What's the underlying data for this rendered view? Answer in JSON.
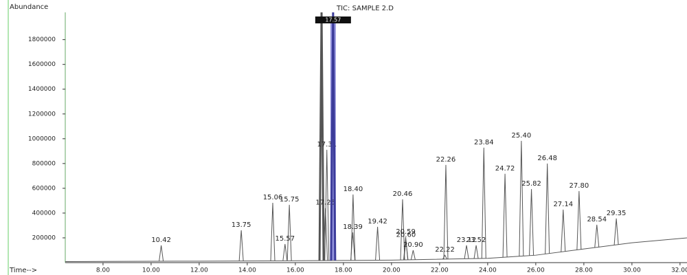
{
  "chart_data": {
    "type": "chromatogram",
    "title": "TIC: SAMPLE 2.D",
    "y_label": "Abundance",
    "x_label": "Time-->",
    "xlim": [
      6.43,
      32.29
    ],
    "ylim": [
      0,
      2020000
    ],
    "yticks": [
      200000,
      400000,
      600000,
      800000,
      1000000,
      1200000,
      1400000,
      1600000,
      1800000
    ],
    "xticks": [
      {
        "value": 8,
        "label": "8.00"
      },
      {
        "value": 10,
        "label": "10.00"
      },
      {
        "value": 12,
        "label": "12.00"
      },
      {
        "value": 14,
        "label": "14.00"
      },
      {
        "value": 16,
        "label": "16.00"
      },
      {
        "value": 18,
        "label": "18.00"
      },
      {
        "value": 20,
        "label": "20.00"
      },
      {
        "value": 22,
        "label": "22.00"
      },
      {
        "value": 24,
        "label": "24.00"
      },
      {
        "value": 26,
        "label": "26.00"
      },
      {
        "value": 28,
        "label": "28.00"
      },
      {
        "value": 30,
        "label": "30.00"
      },
      {
        "value": 32,
        "label": "32.00"
      }
    ],
    "color": "#555555",
    "highlight_color": "#7b7bd6",
    "baseline": {
      "x": [
        6.43,
        8,
        12,
        16,
        20,
        24,
        26,
        28,
        30,
        32.29
      ],
      "values": [
        8000,
        10000,
        12000,
        15000,
        20000,
        35000,
        60000,
        110000,
        160000,
        200000
      ]
    },
    "peaks": {
      "x": [
        10.42,
        13.75,
        15.06,
        15.57,
        15.75,
        17.09,
        17.25,
        17.31,
        17.57,
        18.39,
        18.4,
        19.42,
        20.46,
        20.59,
        20.6,
        20.9,
        22.22,
        22.26,
        23.12,
        23.52,
        23.84,
        24.72,
        25.4,
        25.82,
        26.48,
        27.14,
        27.8,
        28.54,
        29.35
      ],
      "values": [
        139000,
        261000,
        483000,
        150000,
        467000,
        2020000,
        440000,
        911000,
        2020000,
        244000,
        550000,
        289000,
        511000,
        205000,
        180000,
        100000,
        60000,
        789000,
        140000,
        140000,
        928000,
        717000,
        983000,
        594000,
        800000,
        428000,
        578000,
        306000,
        356000
      ],
      "labels": [
        "10.42",
        "13.75",
        "15.06",
        "15.57",
        "15.75",
        null,
        "17.25",
        "17.31",
        "17.57",
        "18.39",
        "18.40",
        "19.42",
        "20.46",
        "20.59",
        "20.60",
        "20.90",
        "22.22",
        "22.26",
        "23.12",
        "23.52",
        "23.84",
        "24.72",
        "25.40",
        "25.82",
        "26.48",
        "27.14",
        "27.80",
        "28.54",
        "29.35"
      ],
      "selected": 8
    }
  }
}
